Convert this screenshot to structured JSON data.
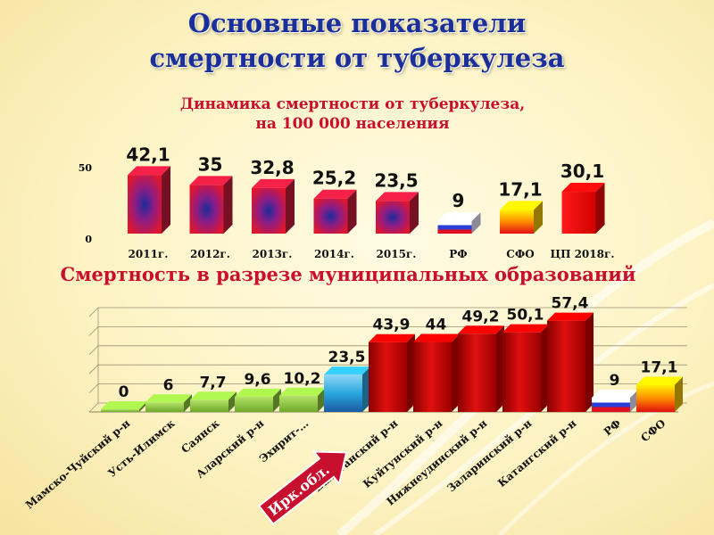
{
  "header": {
    "title_line1": "Основные показатели",
    "title_line2": "смертности от туберкулеза"
  },
  "chart_data": [
    {
      "type": "bar",
      "title": "Динамика смертности от туберкулеза,",
      "subtitle": "на 100 000 населения",
      "categories": [
        "2011г.",
        "2012г.",
        "2013г.",
        "2014г.",
        "2015г.",
        "РФ",
        "СФО",
        "ЦП 2018г."
      ],
      "values": [
        42.1,
        35,
        32.8,
        25.2,
        23.5,
        9,
        17.1,
        30.1
      ],
      "value_labels": [
        "42,1",
        "35",
        "32,8",
        "25,2",
        "23,5",
        "9",
        "17,1",
        "30,1"
      ],
      "ytick_labels": [
        "0",
        "50"
      ],
      "ylim": [
        0,
        50
      ],
      "colors": {
        "years": "#c41a3a",
        "rf": "#e8e8ff",
        "sfo": "#f7c600",
        "cp": "#ef0a0a"
      }
    },
    {
      "type": "bar",
      "title": "Смертность в разрезе муниципальных образований",
      "categories": [
        "Мамско-Чуйский р-н",
        "Усть-Илимск",
        "Саянск",
        "Аларский р-н",
        "Эхирит-…",
        "Ирк.обл.",
        "Балаганский р-н",
        "Куйтунский р-н",
        "Нижнеудинский р-н",
        "Заларинский р-н",
        "Катангский р-н",
        "РФ",
        "СФО"
      ],
      "values": [
        0,
        6,
        7.7,
        9.6,
        10.2,
        23.5,
        43.9,
        44,
        49.2,
        50.1,
        57.4,
        9,
        17.1
      ],
      "value_labels": [
        "0",
        "6",
        "7,7",
        "9,6",
        "10,2",
        "23,5",
        "43,9",
        "44",
        "49,2",
        "50,1",
        "57,4",
        "9",
        "17,1"
      ],
      "ylim": [
        0,
        60
      ],
      "colors": {
        "low": "#8dc63f",
        "region": "#2aa7e0",
        "high": "#cc0000",
        "sfo": "#f7c600"
      }
    }
  ],
  "callout": {
    "label": "Ирк.обл."
  }
}
